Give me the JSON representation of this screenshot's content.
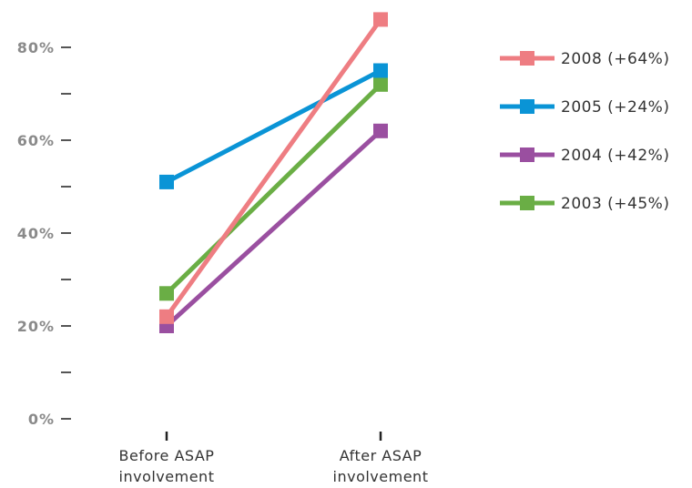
{
  "chart_data": {
    "type": "line",
    "title": "",
    "xlabel": "",
    "ylabel": "",
    "categories": [
      "Before ASAP involvement",
      "After ASAP involvement"
    ],
    "category_lines": [
      [
        "Before ASAP",
        "involvement"
      ],
      [
        "After ASAP",
        "involvement"
      ]
    ],
    "ylim": [
      0,
      80
    ],
    "y_ticks": [
      {
        "value": 0,
        "label": "0%"
      },
      {
        "value": 10,
        "label": ""
      },
      {
        "value": 20,
        "label": "20%"
      },
      {
        "value": 30,
        "label": ""
      },
      {
        "value": 40,
        "label": "40%"
      },
      {
        "value": 50,
        "label": ""
      },
      {
        "value": 60,
        "label": "60%"
      },
      {
        "value": 70,
        "label": ""
      },
      {
        "value": 80,
        "label": "80%"
      }
    ],
    "grid": false,
    "legend_position": "top-right",
    "series": [
      {
        "name": "2003 (+45%)",
        "values": [
          27,
          72
        ],
        "color": "#6aae45"
      },
      {
        "name": "2004 (+42%)",
        "values": [
          20,
          62
        ],
        "color": "#9a4fa0"
      },
      {
        "name": "2005 (+24%)",
        "values": [
          51,
          75
        ],
        "color": "#0a94d6"
      },
      {
        "name": "2008 (+64%)",
        "values": [
          22,
          86
        ],
        "color": "#ee7d82"
      }
    ],
    "legend_order": [
      "2008 (+64%)",
      "2005 (+24%)",
      "2004 (+42%)",
      "2003 (+45%)"
    ]
  }
}
